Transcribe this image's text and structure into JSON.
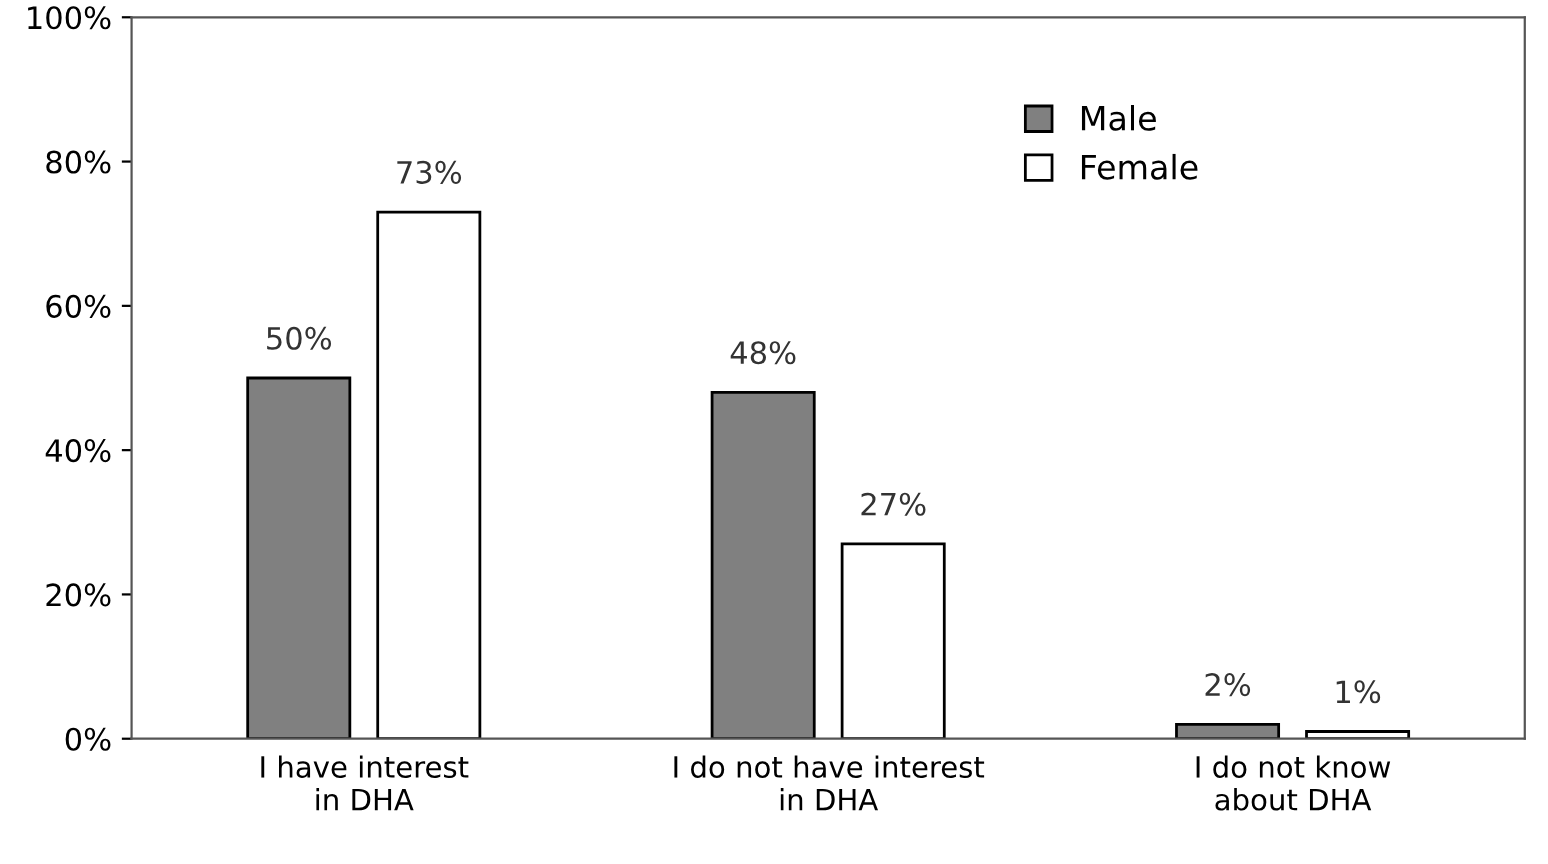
{
  "chart_data": {
    "type": "bar",
    "categories": [
      "I have interest\nin DHA",
      "I do not have interest\nin DHA",
      "I do not know\nabout DHA"
    ],
    "series": [
      {
        "name": "Male",
        "color": "#808080",
        "values": [
          50,
          48,
          2
        ],
        "value_labels": [
          "50%",
          "48%",
          "2%"
        ]
      },
      {
        "name": "Female",
        "color": "#ffffff",
        "values": [
          73,
          27,
          1
        ],
        "value_labels": [
          "73%",
          "27%",
          "1%"
        ]
      }
    ],
    "ylim": [
      0,
      100
    ],
    "yticks": [
      {
        "value": 0,
        "label": "0%"
      },
      {
        "value": 20,
        "label": "20%"
      },
      {
        "value": 40,
        "label": "40%"
      },
      {
        "value": 60,
        "label": "60%"
      },
      {
        "value": 80,
        "label": "80%"
      },
      {
        "value": 100,
        "label": "100%"
      }
    ],
    "grid": false,
    "legend": "top right"
  }
}
